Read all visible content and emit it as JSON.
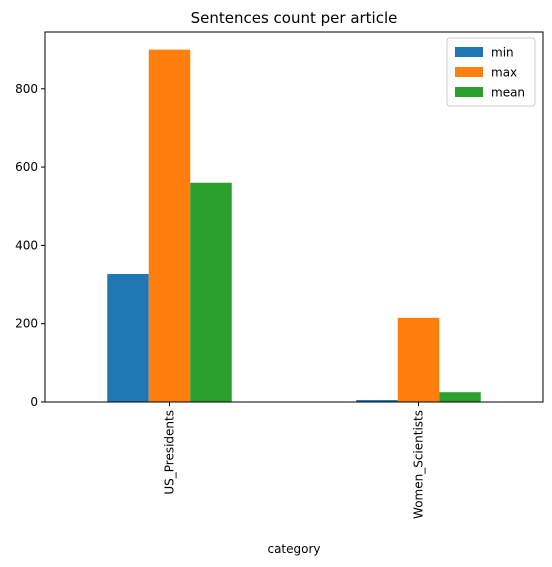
{
  "chart_data": {
    "type": "bar",
    "title": "Sentences count per article",
    "xlabel": "category",
    "ylabel": "",
    "categories": [
      "US_Presidents",
      "Women_Scientists"
    ],
    "series": [
      {
        "name": "min",
        "values": [
          327,
          5
        ],
        "color": "#1f77b4"
      },
      {
        "name": "max",
        "values": [
          900,
          215
        ],
        "color": "#ff7f0e"
      },
      {
        "name": "mean",
        "values": [
          560,
          25
        ],
        "color": "#2ca02c"
      }
    ],
    "ylim": [
      0,
      945
    ],
    "yticks": [
      0,
      200,
      400,
      600,
      800
    ],
    "grid": false,
    "legend_position": "top-right"
  }
}
